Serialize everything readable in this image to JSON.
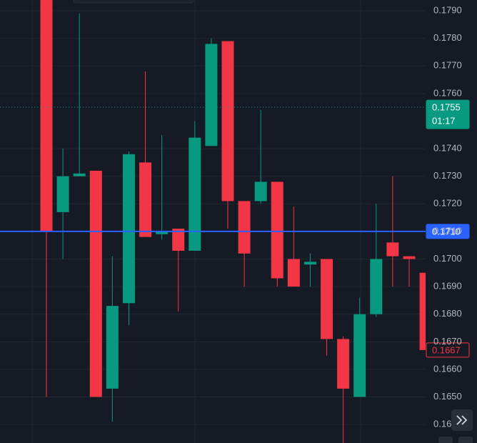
{
  "chart_data": {
    "type": "candlestick",
    "open": [
      0.1795,
      0.1717,
      0.173,
      0.1732,
      0.1653,
      0.1684,
      0.1735,
      0.1709,
      0.1711,
      0.1703,
      0.1741,
      0.1779,
      0.1721,
      0.1721,
      0.1728,
      0.17,
      0.1698,
      0.17,
      0.1671,
      0.165,
      0.168,
      0.1706,
      0.1701,
      0.1695
    ],
    "high": [
      0.18,
      0.174,
      0.1789,
      0.1732,
      0.1701,
      0.1739,
      0.1768,
      0.1745,
      0.1711,
      0.175,
      0.178,
      0.1779,
      0.1721,
      0.1754,
      0.1728,
      0.1719,
      0.1702,
      0.17,
      0.1672,
      0.1686,
      0.172,
      0.173,
      0.1701,
      0.1695
    ],
    "low": [
      0.165,
      0.17,
      0.173,
      0.165,
      0.1641,
      0.1676,
      0.1708,
      0.1707,
      0.1681,
      0.1703,
      0.1741,
      0.1711,
      0.169,
      0.172,
      0.169,
      0.169,
      0.169,
      0.1665,
      0.163,
      0.165,
      0.1679,
      0.169,
      0.169,
      0.1667
    ],
    "close": [
      0.171,
      0.173,
      0.1731,
      0.165,
      0.1683,
      0.1738,
      0.1708,
      0.171,
      0.1703,
      0.1744,
      0.1778,
      0.1721,
      0.1702,
      0.1728,
      0.1693,
      0.169,
      0.1699,
      0.1671,
      0.1653,
      0.168,
      0.17,
      0.1701,
      0.17,
      0.1667
    ],
    "up_color": "#089981",
    "down_color": "#f23645",
    "ylim": [
      0.16333,
      0.17939
    ],
    "yticks": [
      {
        "value": 0.179,
        "label": "0.1790"
      },
      {
        "value": 0.178,
        "label": "0.1780"
      },
      {
        "value": 0.177,
        "label": "0.1770"
      },
      {
        "value": 0.176,
        "label": "0.1760"
      },
      {
        "value": 0.174,
        "label": "0.1740"
      },
      {
        "value": 0.173,
        "label": "0.1730"
      },
      {
        "value": 0.172,
        "label": "0.1720"
      },
      {
        "value": 0.171,
        "label": "0.1710"
      },
      {
        "value": 0.17,
        "label": "0.1700"
      },
      {
        "value": 0.169,
        "label": "0.1690"
      },
      {
        "value": 0.168,
        "label": "0.1680"
      },
      {
        "value": 0.167,
        "label": "0.1670"
      },
      {
        "value": 0.166,
        "label": "0.1660"
      },
      {
        "value": 0.165,
        "label": "0.1650"
      },
      {
        "value": 0.164,
        "label": "0.16"
      }
    ],
    "grid": true,
    "price_lines": [
      {
        "value": 0.1755,
        "label": "0.1755",
        "countdown": "01:17",
        "color": "#089981",
        "style": "dotted"
      },
      {
        "value": 0.171,
        "label": "0.1710",
        "color": "#2962ff",
        "style": "solid"
      },
      {
        "value": 0.1667,
        "label": "0.1667",
        "color": "#f23645",
        "style": "outline"
      }
    ]
  }
}
